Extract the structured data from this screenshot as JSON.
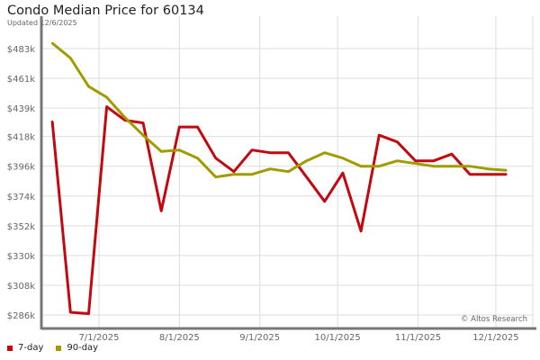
{
  "chart_data": {
    "type": "line",
    "title": "Condo Median Price for 60134",
    "subtitle": "Updated 12/6/2025",
    "watermark": "© Altos Research",
    "xlabel": "",
    "ylabel": "",
    "y_ticks": [
      "$286k",
      "$308k",
      "$330k",
      "$352k",
      "$374k",
      "$396k",
      "$418k",
      "$439k",
      "$461k",
      "$483k"
    ],
    "y_tick_values": [
      286,
      308,
      330,
      352,
      374,
      396,
      418,
      439,
      461,
      483
    ],
    "x_ticks": [
      "7/1/2025",
      "8/1/2025",
      "9/1/2025",
      "10/1/2025",
      "11/1/2025",
      "12/1/2025"
    ],
    "x_tick_dates": [
      "2025-07-01",
      "2025-08-01",
      "2025-09-01",
      "2025-10-01",
      "2025-11-01",
      "2025-12-01"
    ],
    "y_unit": "$k",
    "grid": true,
    "legend_placement": "bottom-left",
    "x": [
      "2025-06-13",
      "2025-06-20",
      "2025-06-27",
      "2025-07-04",
      "2025-07-11",
      "2025-07-18",
      "2025-07-25",
      "2025-08-01",
      "2025-08-08",
      "2025-08-15",
      "2025-08-22",
      "2025-08-29",
      "2025-09-05",
      "2025-09-12",
      "2025-09-19",
      "2025-09-26",
      "2025-10-03",
      "2025-10-10",
      "2025-10-17",
      "2025-10-24",
      "2025-10-31",
      "2025-11-07",
      "2025-11-14",
      "2025-11-21",
      "2025-11-28",
      "2025-12-05"
    ],
    "series": [
      {
        "name": "7-day",
        "color": "#c4090e",
        "values": [
          429,
          288,
          287,
          440,
          430,
          428,
          363,
          425,
          425,
          402,
          392,
          408,
          406,
          406,
          388,
          370,
          391,
          348,
          419,
          414,
          400,
          400,
          405,
          390,
          390,
          390
        ]
      },
      {
        "name": "90-day",
        "color": "#a09c00",
        "values": [
          487,
          476,
          455,
          447,
          432,
          419,
          407,
          408,
          402,
          388,
          390,
          390,
          394,
          392,
          400,
          406,
          402,
          396,
          396,
          400,
          398,
          396,
          396,
          396,
          394,
          393
        ]
      }
    ]
  }
}
